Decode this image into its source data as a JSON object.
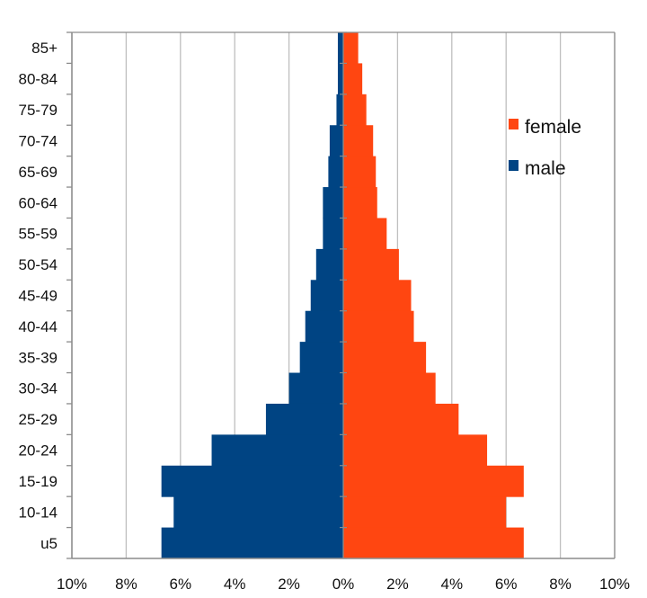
{
  "chart_data": {
    "type": "bar",
    "orientation": "horizontal",
    "layout": "population-pyramid",
    "categories": [
      "85+",
      "80-84",
      "75-79",
      "70-74",
      "65-69",
      "60-64",
      "55-59",
      "50-54",
      "45-49",
      "40-44",
      "35-39",
      "30-34",
      "25-29",
      "20-24",
      "15-19",
      "10-14",
      "u5"
    ],
    "series": [
      {
        "name": "female",
        "color": "#ff4611",
        "values": [
          0.55,
          0.7,
          0.85,
          1.1,
          1.2,
          1.25,
          1.6,
          2.05,
          2.5,
          2.6,
          3.05,
          3.4,
          4.25,
          5.3,
          6.65,
          6.0,
          6.65
        ]
      },
      {
        "name": "male",
        "color": "#004483",
        "values": [
          0.2,
          0.2,
          0.25,
          0.5,
          0.55,
          0.75,
          0.75,
          1.0,
          1.2,
          1.4,
          1.6,
          2.0,
          2.85,
          4.85,
          6.7,
          6.25,
          6.7
        ]
      }
    ],
    "x_ticks": [
      "10%",
      "8%",
      "6%",
      "4%",
      "2%",
      "0%",
      "2%",
      "4%",
      "6%",
      "8%",
      "10%"
    ],
    "xlim": [
      -10,
      10
    ],
    "title": "",
    "xlabel": "",
    "ylabel": "",
    "grid": "vertical",
    "legend_position": "top-right"
  }
}
